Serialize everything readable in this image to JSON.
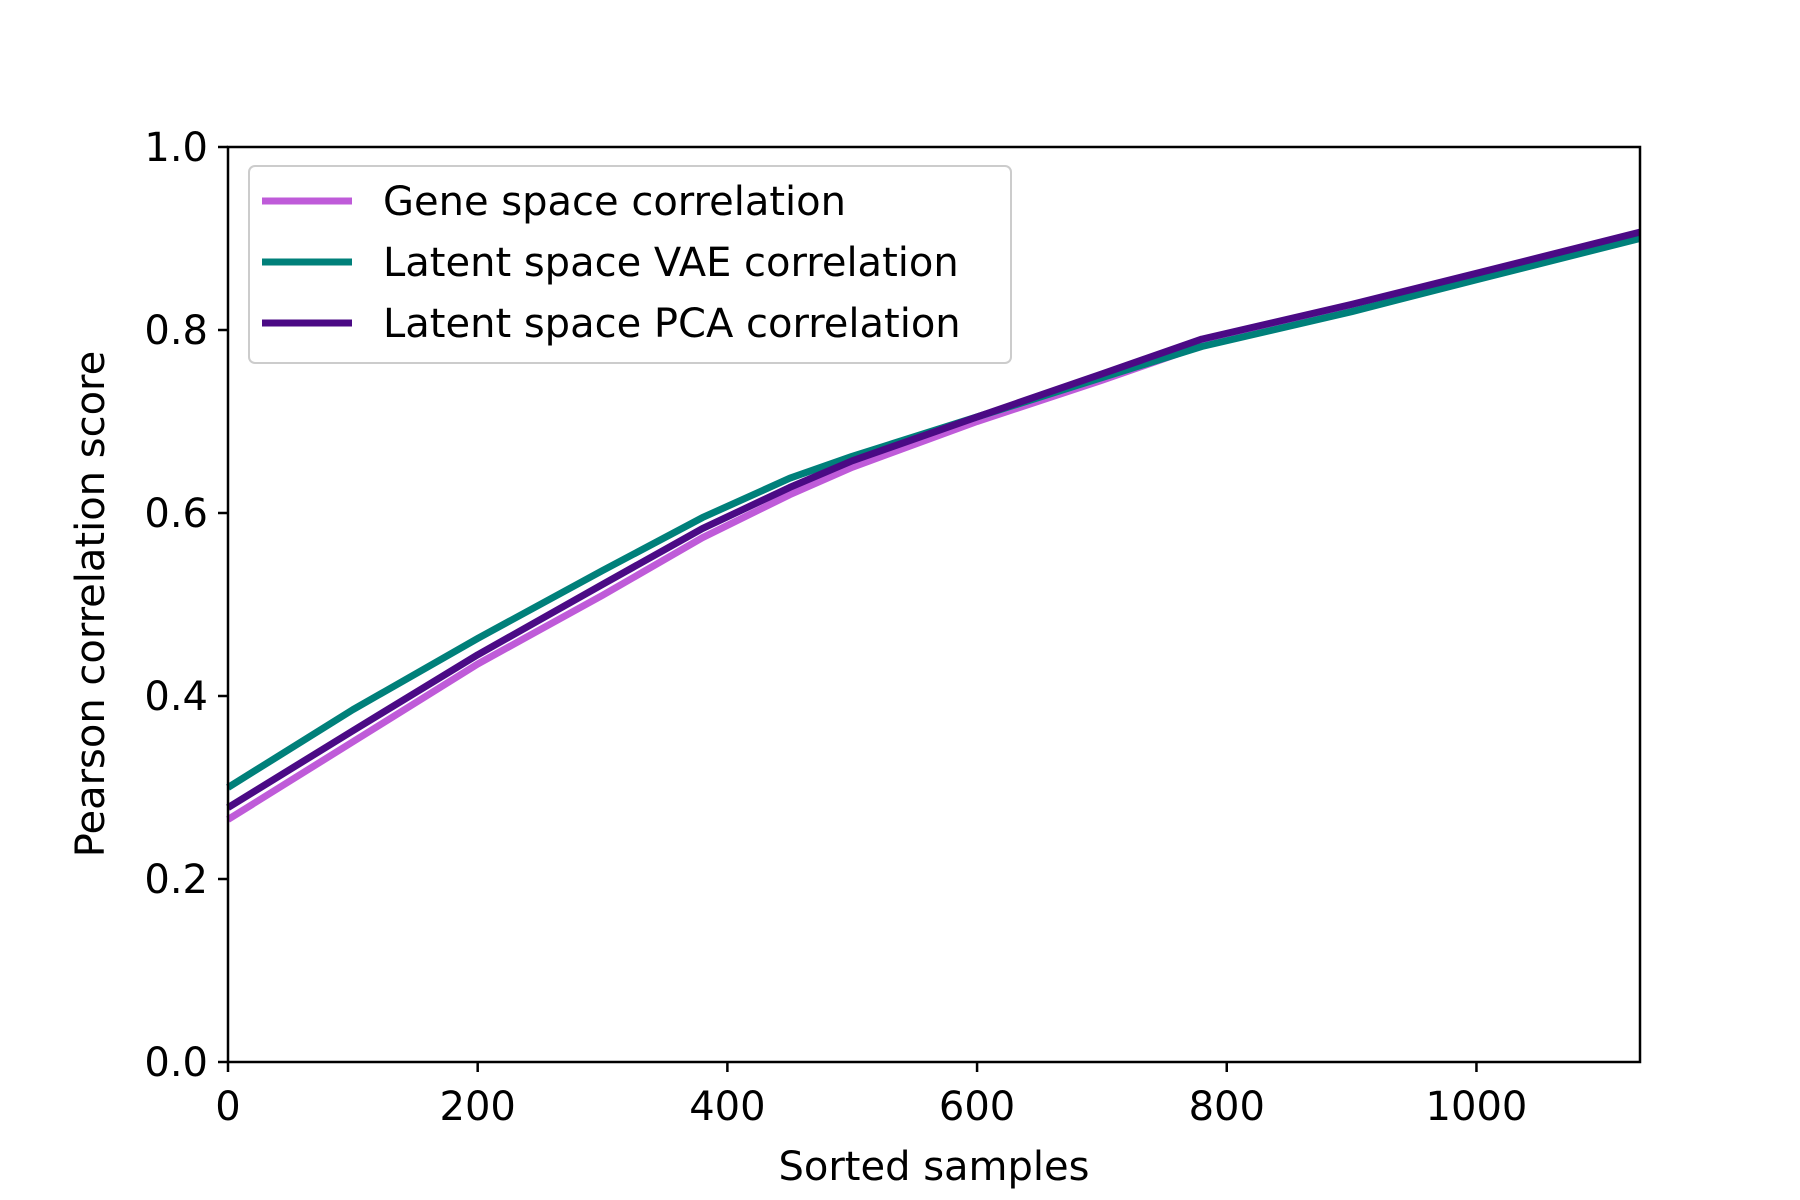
{
  "chart_data": {
    "type": "line",
    "title": "",
    "xlabel": "Sorted samples",
    "ylabel": "Pearson correlation score",
    "xlim": [
      0,
      1131
    ],
    "ylim": [
      0.0,
      1.0
    ],
    "xticks": [
      0,
      200,
      400,
      600,
      800,
      1000
    ],
    "xtick_labels": [
      "0",
      "200",
      "400",
      "600",
      "800",
      "1000"
    ],
    "yticks": [
      0.0,
      0.2,
      0.4,
      0.6,
      0.8,
      1.0
    ],
    "ytick_labels": [
      "0.0",
      "0.2",
      "0.4",
      "0.6",
      "0.8",
      "1.0"
    ],
    "grid": false,
    "legend_position": "top-left",
    "series": [
      {
        "name": "Gene space correlation",
        "color": "#bf5bd9",
        "x": [
          0,
          100,
          200,
          300,
          380,
          450,
          500,
          600,
          700,
          780,
          900,
          1000,
          1131
        ],
        "y": [
          0.265,
          0.35,
          0.435,
          0.51,
          0.573,
          0.62,
          0.65,
          0.7,
          0.745,
          0.783,
          0.822,
          0.857,
          0.902
        ]
      },
      {
        "name": "Latent space VAE correlation",
        "color": "#00807a",
        "x": [
          0,
          100,
          200,
          300,
          380,
          450,
          500,
          600,
          700,
          780,
          900,
          1000,
          1131
        ],
        "y": [
          0.3,
          0.385,
          0.463,
          0.537,
          0.595,
          0.638,
          0.662,
          0.705,
          0.748,
          0.782,
          0.82,
          0.855,
          0.9
        ]
      },
      {
        "name": "Latent space PCA correlation",
        "color": "#4b0a85",
        "x": [
          0,
          100,
          200,
          300,
          380,
          450,
          500,
          600,
          700,
          780,
          900,
          1000,
          1131
        ],
        "y": [
          0.278,
          0.362,
          0.445,
          0.522,
          0.583,
          0.628,
          0.657,
          0.705,
          0.752,
          0.79,
          0.828,
          0.862,
          0.907
        ]
      }
    ]
  }
}
